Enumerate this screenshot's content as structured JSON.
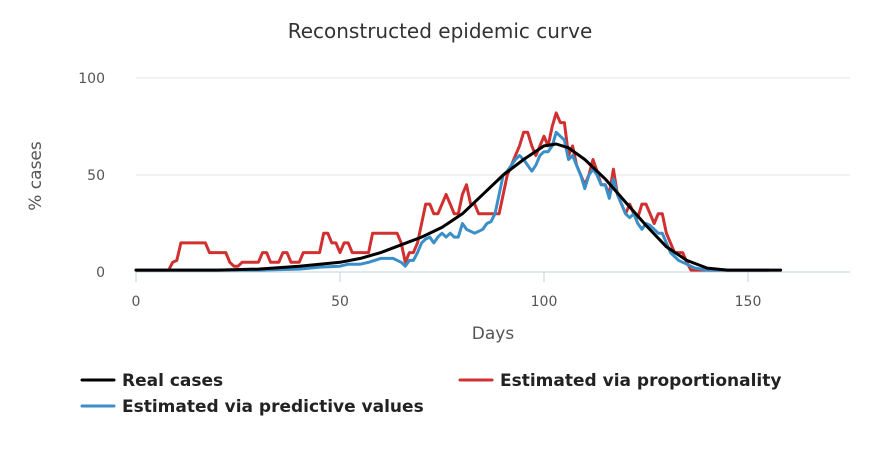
{
  "chart_data": {
    "type": "line",
    "title": "Reconstructed epidemic curve",
    "xlabel": "Days",
    "ylabel": "% cases",
    "xlim": [
      0,
      175
    ],
    "ylim": [
      0,
      100
    ],
    "xticks": [
      0,
      50,
      100,
      150
    ],
    "yticks": [
      0,
      50,
      100
    ],
    "grid": true,
    "legend_position": "bottom",
    "series": [
      {
        "name": "Real cases",
        "color": "#000000",
        "points": [
          [
            0,
            1
          ],
          [
            10,
            1
          ],
          [
            20,
            1
          ],
          [
            30,
            1.5
          ],
          [
            40,
            3
          ],
          [
            50,
            5
          ],
          [
            55,
            7
          ],
          [
            60,
            10
          ],
          [
            65,
            14
          ],
          [
            70,
            18
          ],
          [
            75,
            23
          ],
          [
            80,
            30
          ],
          [
            85,
            40
          ],
          [
            90,
            50
          ],
          [
            95,
            58
          ],
          [
            100,
            65
          ],
          [
            103,
            66
          ],
          [
            106,
            64
          ],
          [
            110,
            58
          ],
          [
            115,
            48
          ],
          [
            120,
            36
          ],
          [
            125,
            24
          ],
          [
            130,
            13
          ],
          [
            135,
            6
          ],
          [
            140,
            2
          ],
          [
            145,
            1
          ],
          [
            150,
            1
          ],
          [
            155,
            1
          ],
          [
            158,
            1
          ]
        ]
      },
      {
        "name": "Estimated via proportionality",
        "color": "#d03030",
        "points": [
          [
            0,
            1
          ],
          [
            8,
            1
          ],
          [
            9,
            5
          ],
          [
            10,
            6
          ],
          [
            11,
            15
          ],
          [
            17,
            15
          ],
          [
            18,
            10
          ],
          [
            22,
            10
          ],
          [
            23,
            5
          ],
          [
            24,
            3
          ],
          [
            25,
            3
          ],
          [
            26,
            5
          ],
          [
            30,
            5
          ],
          [
            31,
            10
          ],
          [
            32,
            10
          ],
          [
            33,
            5
          ],
          [
            35,
            5
          ],
          [
            36,
            10
          ],
          [
            37,
            10
          ],
          [
            38,
            5
          ],
          [
            40,
            5
          ],
          [
            41,
            10
          ],
          [
            45,
            10
          ],
          [
            46,
            20
          ],
          [
            47,
            20
          ],
          [
            48,
            15
          ],
          [
            49,
            15
          ],
          [
            50,
            10
          ],
          [
            51,
            15
          ],
          [
            52,
            15
          ],
          [
            53,
            10
          ],
          [
            57,
            10
          ],
          [
            58,
            20
          ],
          [
            64,
            20
          ],
          [
            65,
            15
          ],
          [
            66,
            5
          ],
          [
            67,
            10
          ],
          [
            68,
            10
          ],
          [
            69,
            15
          ],
          [
            70,
            25
          ],
          [
            71,
            35
          ],
          [
            72,
            35
          ],
          [
            73,
            30
          ],
          [
            74,
            30
          ],
          [
            75,
            35
          ],
          [
            76,
            40
          ],
          [
            77,
            35
          ],
          [
            78,
            30
          ],
          [
            79,
            30
          ],
          [
            80,
            40
          ],
          [
            81,
            45
          ],
          [
            82,
            35
          ],
          [
            83,
            35
          ],
          [
            84,
            30
          ],
          [
            89,
            30
          ],
          [
            90,
            40
          ],
          [
            91,
            50
          ],
          [
            92,
            55
          ],
          [
            93,
            60
          ],
          [
            94,
            65
          ],
          [
            95,
            72
          ],
          [
            96,
            72
          ],
          [
            97,
            65
          ],
          [
            98,
            60
          ],
          [
            99,
            65
          ],
          [
            100,
            70
          ],
          [
            101,
            65
          ],
          [
            102,
            75
          ],
          [
            103,
            82
          ],
          [
            104,
            77
          ],
          [
            105,
            77
          ],
          [
            106,
            60
          ],
          [
            107,
            65
          ],
          [
            108,
            55
          ],
          [
            109,
            50
          ],
          [
            110,
            45
          ],
          [
            111,
            50
          ],
          [
            112,
            58
          ],
          [
            113,
            52
          ],
          [
            114,
            45
          ],
          [
            115,
            45
          ],
          [
            116,
            40
          ],
          [
            117,
            53
          ],
          [
            118,
            40
          ],
          [
            119,
            35
          ],
          [
            120,
            30
          ],
          [
            121,
            35
          ],
          [
            122,
            30
          ],
          [
            123,
            28
          ],
          [
            124,
            35
          ],
          [
            125,
            35
          ],
          [
            126,
            30
          ],
          [
            127,
            25
          ],
          [
            128,
            30
          ],
          [
            129,
            30
          ],
          [
            130,
            20
          ],
          [
            131,
            15
          ],
          [
            132,
            10
          ],
          [
            133,
            10
          ],
          [
            134,
            10
          ],
          [
            135,
            5
          ],
          [
            136,
            1
          ],
          [
            145,
            1
          ],
          [
            155,
            1
          ]
        ]
      },
      {
        "name": "Estimated via predictive values",
        "color": "#3a8fc8",
        "points": [
          [
            0,
            1
          ],
          [
            20,
            1
          ],
          [
            30,
            1
          ],
          [
            40,
            1.5
          ],
          [
            45,
            2.5
          ],
          [
            50,
            3
          ],
          [
            52,
            4
          ],
          [
            55,
            4
          ],
          [
            57,
            5
          ],
          [
            60,
            7
          ],
          [
            63,
            7
          ],
          [
            65,
            5
          ],
          [
            66,
            3
          ],
          [
            67,
            6
          ],
          [
            68,
            6
          ],
          [
            69,
            10
          ],
          [
            70,
            15
          ],
          [
            71,
            17
          ],
          [
            72,
            18
          ],
          [
            73,
            15
          ],
          [
            74,
            18
          ],
          [
            75,
            20
          ],
          [
            76,
            18
          ],
          [
            77,
            20
          ],
          [
            78,
            18
          ],
          [
            79,
            18
          ],
          [
            80,
            25
          ],
          [
            81,
            22
          ],
          [
            82,
            21
          ],
          [
            83,
            20
          ],
          [
            84,
            21
          ],
          [
            85,
            22
          ],
          [
            86,
            25
          ],
          [
            87,
            26
          ],
          [
            88,
            30
          ],
          [
            89,
            40
          ],
          [
            90,
            50
          ],
          [
            91,
            52
          ],
          [
            92,
            55
          ],
          [
            93,
            58
          ],
          [
            94,
            60
          ],
          [
            95,
            58
          ],
          [
            96,
            55
          ],
          [
            97,
            52
          ],
          [
            98,
            55
          ],
          [
            99,
            60
          ],
          [
            100,
            62
          ],
          [
            101,
            62
          ],
          [
            102,
            65
          ],
          [
            103,
            72
          ],
          [
            104,
            70
          ],
          [
            105,
            68
          ],
          [
            106,
            58
          ],
          [
            107,
            60
          ],
          [
            108,
            55
          ],
          [
            109,
            50
          ],
          [
            110,
            43
          ],
          [
            111,
            50
          ],
          [
            112,
            53
          ],
          [
            113,
            50
          ],
          [
            114,
            45
          ],
          [
            115,
            45
          ],
          [
            116,
            38
          ],
          [
            117,
            48
          ],
          [
            118,
            40
          ],
          [
            119,
            35
          ],
          [
            120,
            30
          ],
          [
            121,
            28
          ],
          [
            122,
            30
          ],
          [
            123,
            25
          ],
          [
            124,
            22
          ],
          [
            125,
            25
          ],
          [
            126,
            24
          ],
          [
            127,
            22
          ],
          [
            128,
            20
          ],
          [
            129,
            20
          ],
          [
            130,
            15
          ],
          [
            131,
            10
          ],
          [
            132,
            8
          ],
          [
            133,
            6
          ],
          [
            134,
            5
          ],
          [
            135,
            4
          ],
          [
            136,
            3
          ],
          [
            137,
            2
          ],
          [
            140,
            1
          ],
          [
            145,
            1
          ],
          [
            155,
            1
          ]
        ]
      }
    ]
  }
}
